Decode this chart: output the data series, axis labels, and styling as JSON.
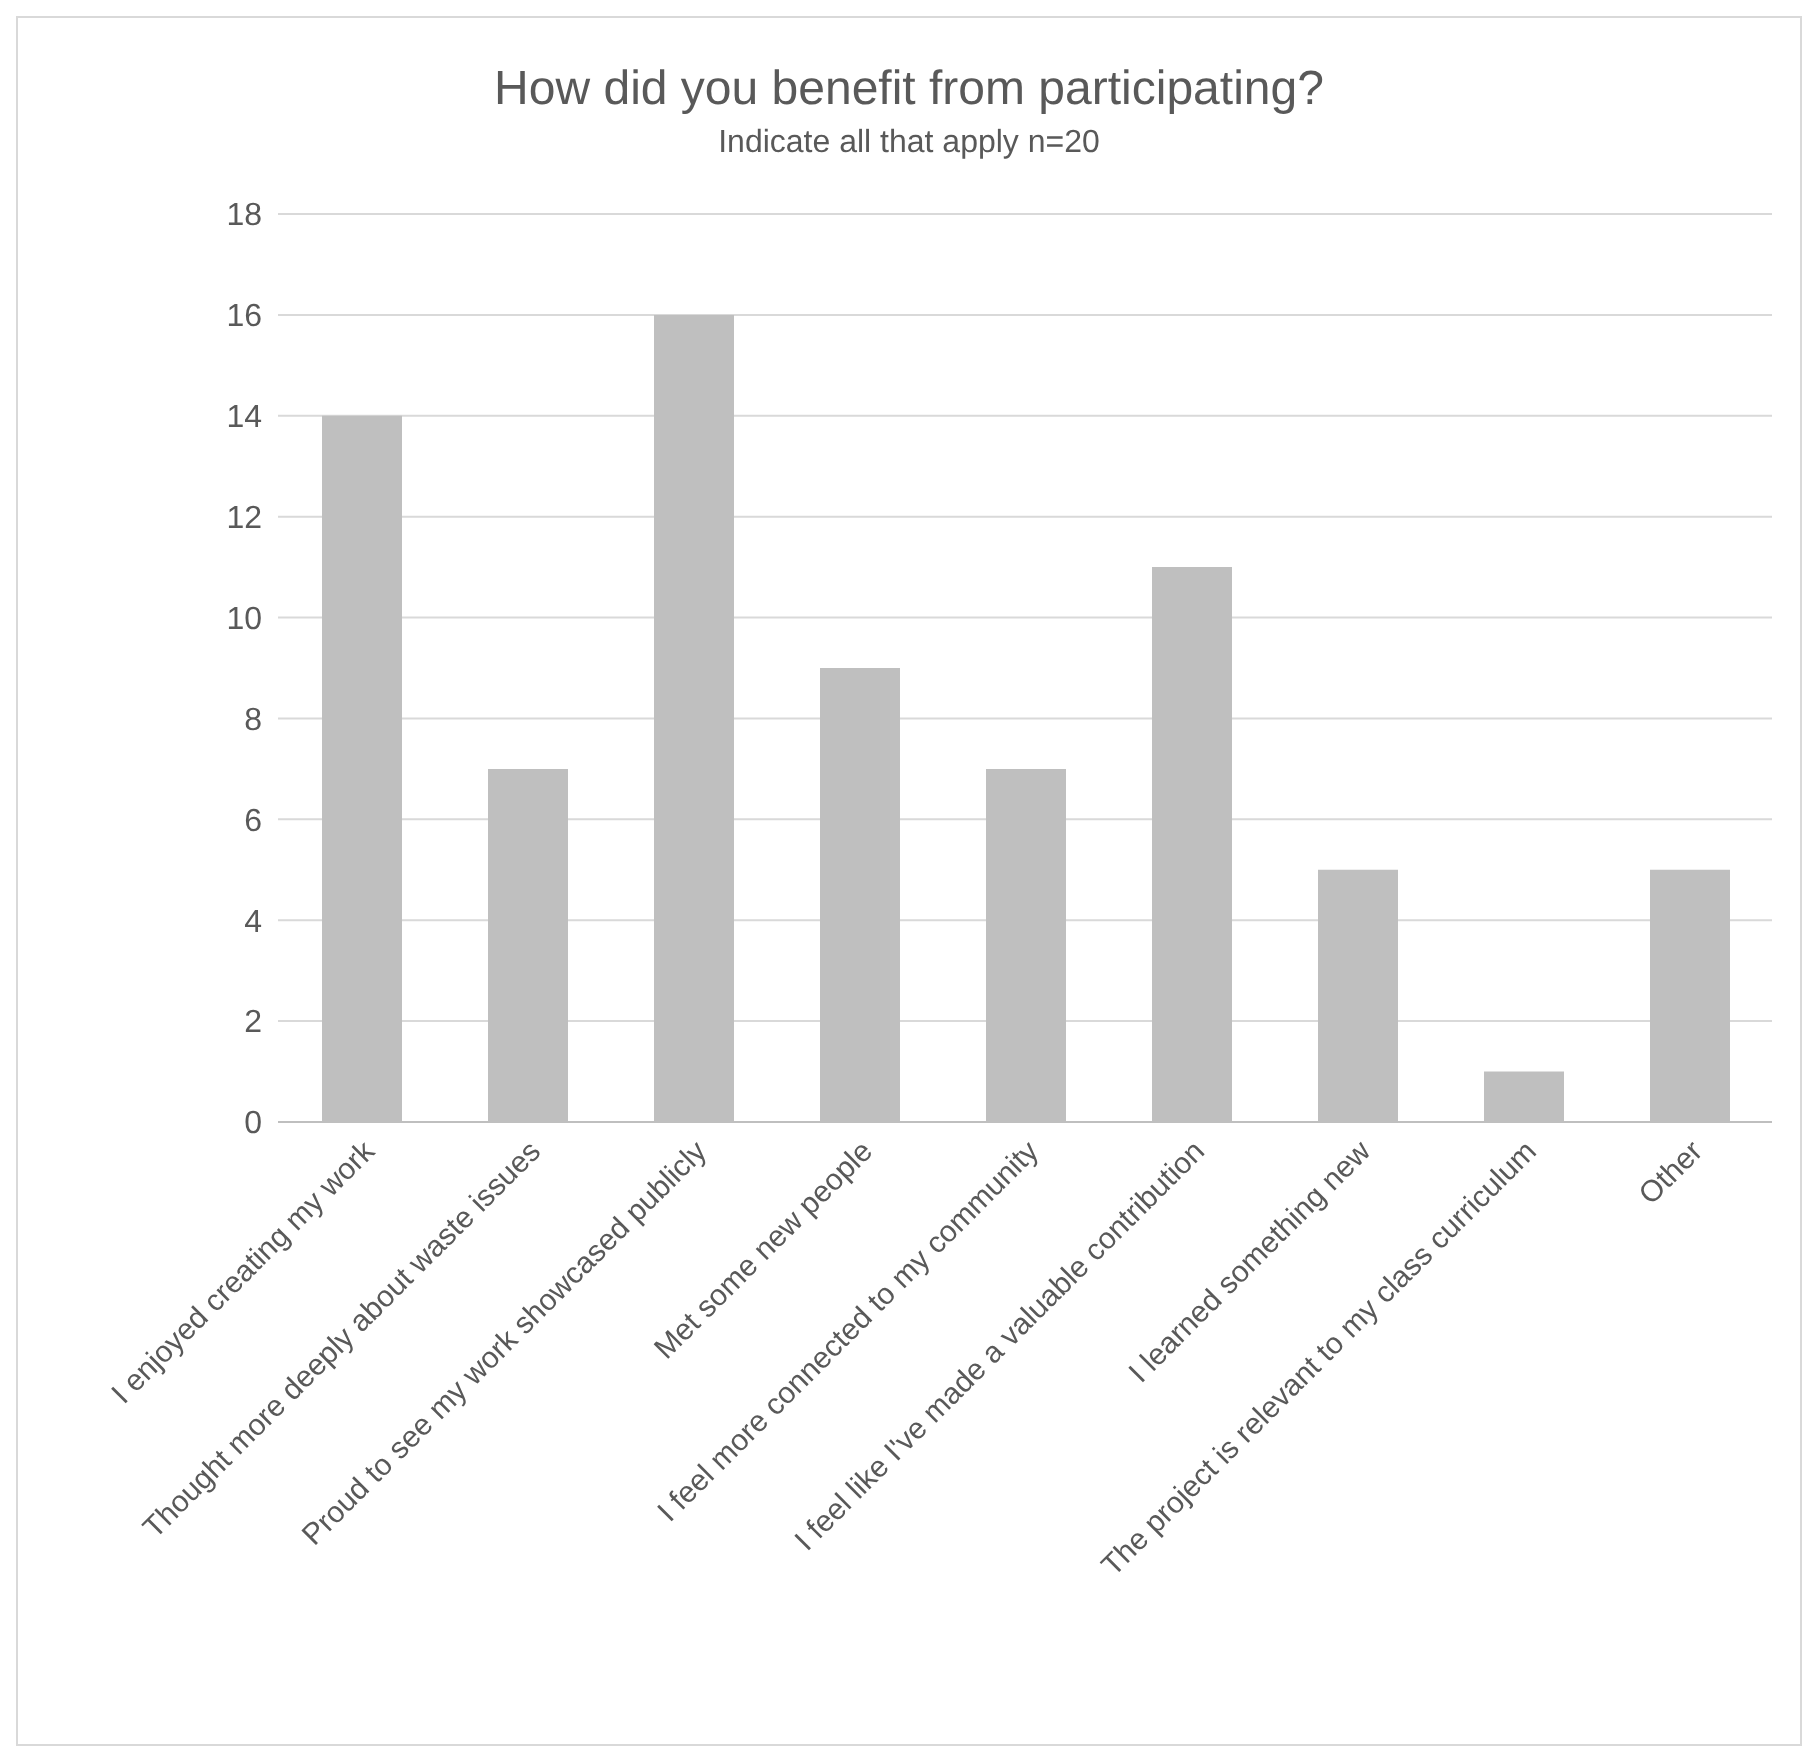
{
  "chart_data": {
    "type": "bar",
    "title": "How did you benefit from participating?",
    "subtitle": "Indicate all that apply n=20",
    "categories": [
      "I enjoyed creating my work",
      "Thought more deeply about waste issues",
      "Proud to see my work showcased publicly",
      "Met some new people",
      "I feel more connected to my community",
      "I feel like I've made a valuable contribution",
      "I learned something new",
      "The project is relevant to my class curriculum",
      "Other"
    ],
    "values": [
      14,
      7,
      16,
      9,
      7,
      11,
      5,
      1,
      5
    ],
    "color": "#bfbfbf",
    "ylim": [
      0,
      18
    ],
    "yticks": [
      0,
      2,
      4,
      6,
      8,
      10,
      12,
      14,
      16,
      18
    ],
    "grid": "y"
  }
}
